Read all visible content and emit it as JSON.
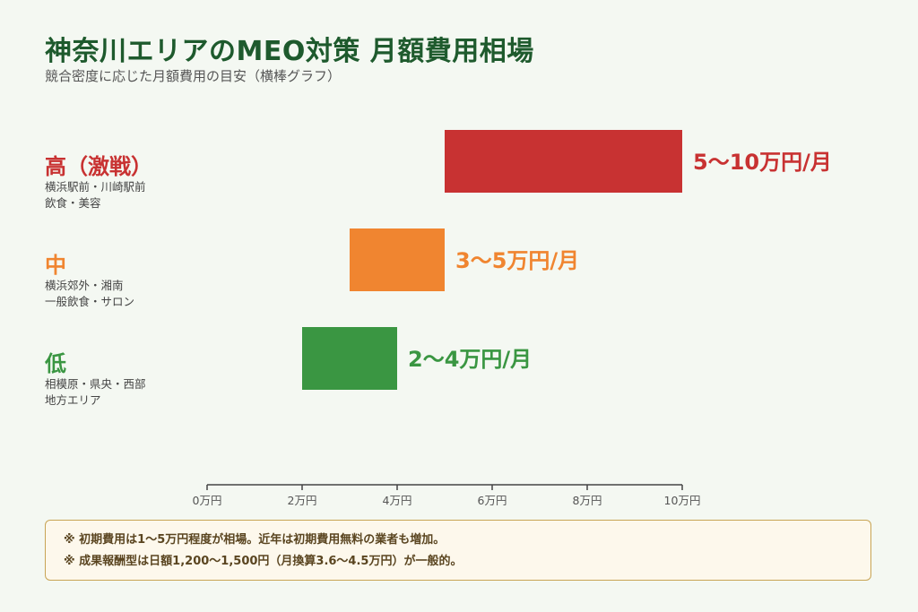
{
  "header": {
    "title": "神奈川エリアのMEO対策 月額費用相場",
    "subtitle": "競合密度に応じた月額費用の目安（横棒グラフ）"
  },
  "chart_data": {
    "type": "bar",
    "orientation": "horizontal",
    "unit": "万円",
    "xlim": [
      0,
      10
    ],
    "ticks": [
      0,
      2,
      4,
      6,
      8,
      10
    ],
    "tick_labels": [
      "0万円",
      "2万円",
      "4万円",
      "6万円",
      "8万円",
      "10万円"
    ],
    "grid": false,
    "categories": [
      {
        "label": "高（激戦）",
        "desc": [
          "横浜駅前・川崎駅前",
          "飲食・美容"
        ],
        "range": [
          5,
          10
        ],
        "value_label": "5〜10万円/月",
        "color": "#c83232"
      },
      {
        "label": "中",
        "desc": [
          "横浜郊外・湘南",
          "一般飲食・サロン"
        ],
        "range": [
          3,
          5
        ],
        "value_label": "3〜5万円/月",
        "color": "#f08530"
      },
      {
        "label": "低",
        "desc": [
          "相模原・県央・西部",
          "地方エリア"
        ],
        "range": [
          2,
          4
        ],
        "value_label": "2〜4万円/月",
        "color": "#3a9642"
      }
    ]
  },
  "notes": [
    "※ 初期費用は1〜5万円程度が相場。近年は初期費用無料の業者も増加。",
    "※ 成果報酬型は日額1,200〜1,500円（月換算3.6〜4.5万円）が一般的。"
  ]
}
